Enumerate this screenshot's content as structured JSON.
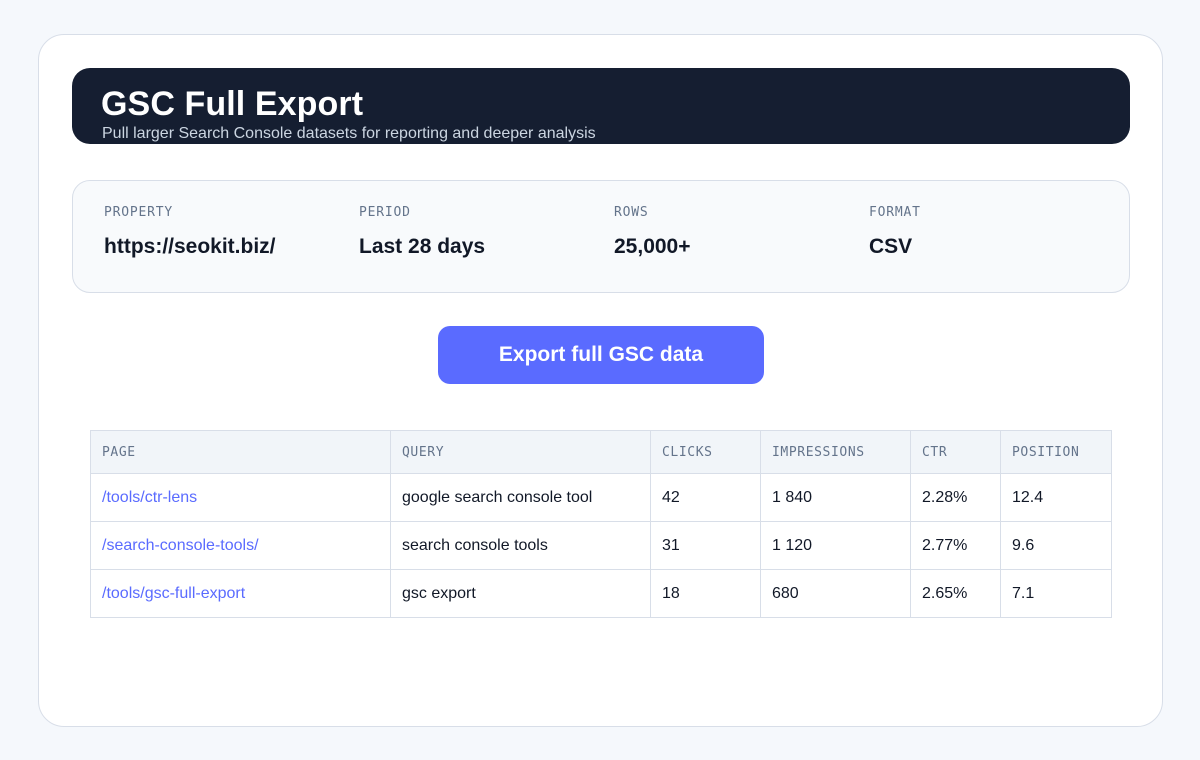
{
  "header": {
    "title": "GSC Full Export",
    "subtitle": "Pull larger Search Console datasets for reporting and deeper analysis"
  },
  "summary": [
    {
      "label": "PROPERTY",
      "value": "https://seokit.biz/"
    },
    {
      "label": "PERIOD",
      "value": "Last 28 days"
    },
    {
      "label": "ROWS",
      "value": "25,000+"
    },
    {
      "label": "FORMAT",
      "value": "CSV"
    }
  ],
  "export_button_label": "Export full GSC data",
  "table": {
    "columns": [
      "PAGE",
      "QUERY",
      "CLICKS",
      "IMPRESSIONS",
      "CTR",
      "POSITION"
    ],
    "rows": [
      {
        "page": "/tools/ctr-lens",
        "query": "google search console tool",
        "clicks": "42",
        "impressions": "1 840",
        "ctr": "2.28%",
        "position": "12.4"
      },
      {
        "page": "/search-console-tools/",
        "query": "search console tools",
        "clicks": "31",
        "impressions": "1 120",
        "ctr": "2.77%",
        "position": "9.6"
      },
      {
        "page": "/tools/gsc-full-export",
        "query": "gsc export",
        "clicks": "18",
        "impressions": "680",
        "ctr": "2.65%",
        "position": "7.1"
      }
    ]
  },
  "colors": {
    "accent": "#5a6bff",
    "header_bg": "#151e31",
    "page_bg": "#f5f8fc"
  }
}
